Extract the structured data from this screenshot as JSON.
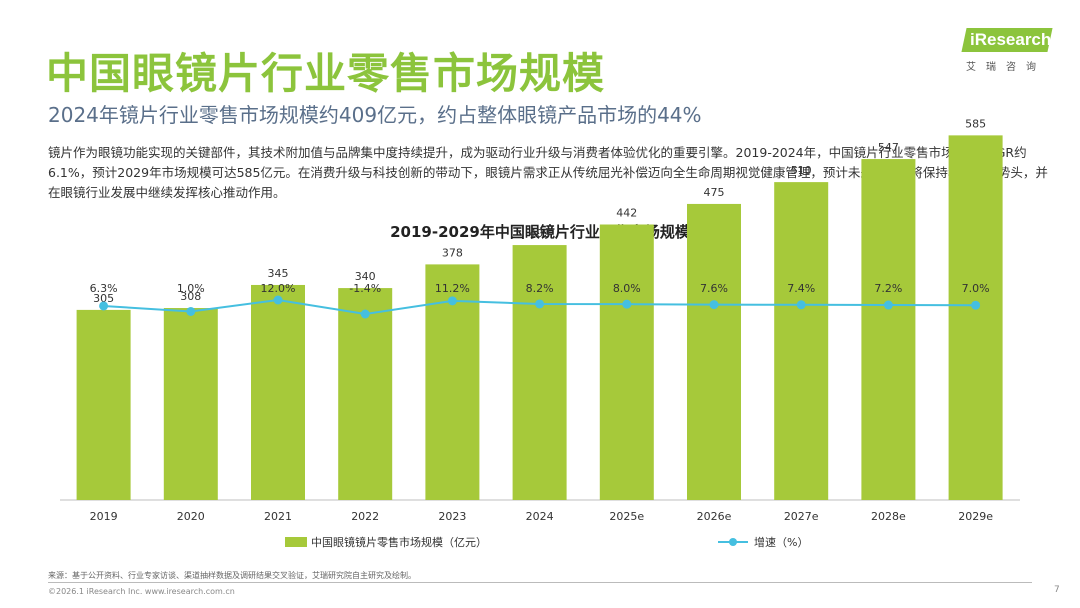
{
  "header": {
    "title": "中国眼镜片行业零售市场规模",
    "subtitle": "2024年镜片行业零售市场规模约409亿元，约占整体眼镜产品市场的44%",
    "body": "镜片作为眼镜功能实现的关键部件，其技术附加值与品牌集中度持续提升，成为驱动行业升级与消费者体验优化的重要引擎。2019-2024年，中国镜片行业零售市场规模CAGR约6.1%，预计2029年市场规模可达585亿元。在消费升级与科技创新的带动下，眼镜片需求正从传统屈光补偿迈向全生命周期视觉健康管理，预计未来五年仍将保持稳健增长势头，并在眼镜行业发展中继续发挥核心推动作用。"
  },
  "logo": {
    "name": "iResearch",
    "sub": "艾瑞咨询"
  },
  "colors": {
    "accent": "#8cc43c",
    "bar": "#a6c93a",
    "line": "#45bfe0"
  },
  "chart_data": {
    "type": "bar+line",
    "title": "2019-2029年中国眼镜片行业零售市场规模",
    "categories": [
      "2019",
      "2020",
      "2021",
      "2022",
      "2023",
      "2024",
      "2025e",
      "2026e",
      "2027e",
      "2028e",
      "2029e"
    ],
    "series": [
      {
        "name": "中国眼镜镜片零售市场规模（亿元）",
        "type": "bar",
        "values": [
          305,
          308,
          345,
          340,
          378,
          409,
          442,
          475,
          510,
          547,
          585
        ]
      },
      {
        "name": "增速（%）",
        "type": "line",
        "values": [
          6.3,
          1.0,
          12.0,
          -1.4,
          11.2,
          8.2,
          8.0,
          7.6,
          7.4,
          7.2,
          7.0
        ],
        "labels": [
          "6.3%",
          "1.0%",
          "12.0%",
          "-1.4%",
          "11.2%",
          "8.2%",
          "8.0%",
          "7.6%",
          "7.4%",
          "7.2%",
          "7.0%"
        ]
      }
    ],
    "bar_label": "中国眼镜镜片零售市场规模（亿元）",
    "line_label": "增速（%）"
  },
  "footer": {
    "source": "来源：基于公开资料、行业专家访谈、渠道抽样数据及调研结果交叉验证，艾瑞研究院自主研究及绘制。",
    "copyright": "©2026.1 iResearch Inc.                     www.iresearch.com.cn",
    "page": "7"
  }
}
